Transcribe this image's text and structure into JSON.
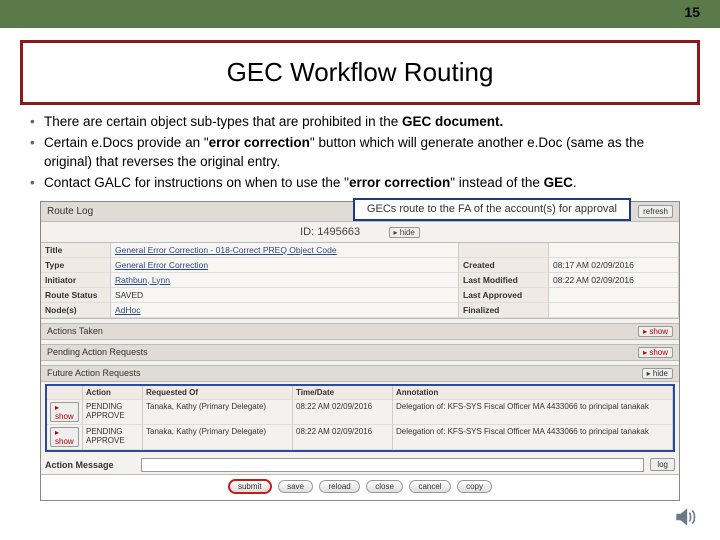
{
  "page_number": "15",
  "title": "GEC Workflow Routing",
  "bullets": [
    "There are certain object sub-types that are prohibited in the <b>GEC document.</b>",
    "Certain e.Docs provide an \"<b>error correction</b>\" button which will generate another e.Doc (same as the original) that reverses the original entry.",
    "Contact GALC for instructions on when to use the \"<b>error correction</b>\" instead of the <b>GEC</b>."
  ],
  "callout": "GECs route to the FA of the account(s) for approval",
  "route": {
    "header": "Route Log",
    "refresh": "refresh",
    "id_label": "ID:",
    "id_value": "1495663",
    "hide": "▸ hide",
    "show": "▸ show",
    "meta": {
      "title_lbl": "Title",
      "title_val": "General Error Correction - 018-Correct PREQ Object Code",
      "type_lbl": "Type",
      "type_val": "General Error Correction",
      "initiator_lbl": "Initiator",
      "initiator_val": "Rathbun, Lynn",
      "status_lbl": "Route Status",
      "status_val": "SAVED",
      "nodes_lbl": "Node(s)",
      "nodes_val": "AdHoc",
      "created_lbl": "Created",
      "created_val": "08:17 AM 02/09/2016",
      "modified_lbl": "Last Modified",
      "modified_val": "08:22 AM 02/09/2016",
      "approved_lbl": "Last Approved",
      "approved_val": "",
      "finalized_lbl": "Finalized",
      "finalized_val": ""
    },
    "sections": {
      "actions_taken": "Actions Taken",
      "pending": "Pending Action Requests",
      "future": "Future Action Requests"
    },
    "cols": {
      "action": "Action",
      "requested": "Requested Of",
      "time": "Time/Date",
      "annotation": "Annotation"
    },
    "rows": [
      {
        "btn": "▸ show",
        "action": "PENDING APPROVE",
        "requested": "Tanaka, Kathy  (Primary Delegate)",
        "time": "08:22 AM 02/09/2016",
        "annotation": "Delegation of: KFS-SYS Fiscal Officer MA 4433066 to principal tanakak"
      },
      {
        "btn": "▸ show",
        "action": "PENDING APPROVE",
        "requested": "Tanaka, Kathy  (Primary Delegate)",
        "time": "08:22 AM 02/09/2016",
        "annotation": "Delegation of: KFS-SYS Fiscal Officer MA 4433066 to principal tanakak"
      }
    ],
    "msg_label": "Action Message",
    "log_btn": "log",
    "buttons": [
      "submit",
      "save",
      "reload",
      "close",
      "cancel",
      "copy"
    ]
  }
}
